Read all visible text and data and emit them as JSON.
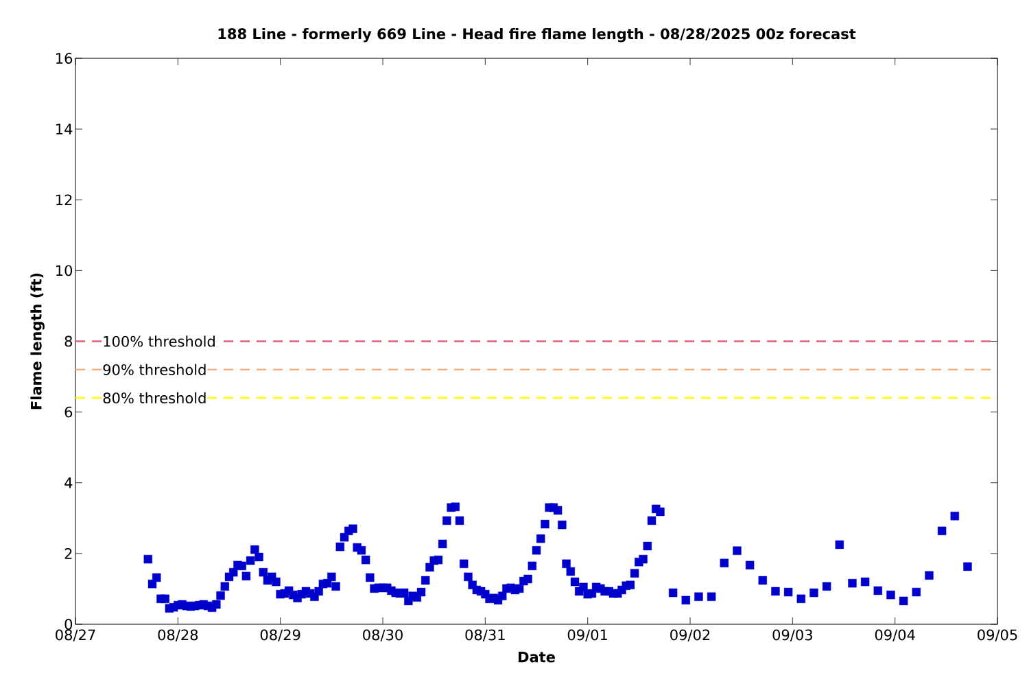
{
  "chart_data": {
    "type": "scatter",
    "title": "188 Line - formerly 669 Line - Head fire flame length - 08/28/2025 00z forecast",
    "xlabel": "Date",
    "ylabel": "Flame length (ft)",
    "x": [
      "2025-08-27T17:00",
      "2025-08-27T18:00",
      "2025-08-27T19:00",
      "2025-08-27T20:00",
      "2025-08-27T21:00",
      "2025-08-27T22:00",
      "2025-08-27T23:00",
      "2025-08-28T00:00",
      "2025-08-28T01:00",
      "2025-08-28T02:00",
      "2025-08-28T03:00",
      "2025-08-28T04:00",
      "2025-08-28T05:00",
      "2025-08-28T06:00",
      "2025-08-28T07:00",
      "2025-08-28T08:00",
      "2025-08-28T09:00",
      "2025-08-28T10:00",
      "2025-08-28T11:00",
      "2025-08-28T12:00",
      "2025-08-28T13:00",
      "2025-08-28T14:00",
      "2025-08-28T15:00",
      "2025-08-28T16:00",
      "2025-08-28T17:00",
      "2025-08-28T18:00",
      "2025-08-28T19:00",
      "2025-08-28T20:00",
      "2025-08-28T21:00",
      "2025-08-28T22:00",
      "2025-08-28T23:00",
      "2025-08-29T00:00",
      "2025-08-29T01:00",
      "2025-08-29T02:00",
      "2025-08-29T03:00",
      "2025-08-29T04:00",
      "2025-08-29T05:00",
      "2025-08-29T06:00",
      "2025-08-29T07:00",
      "2025-08-29T08:00",
      "2025-08-29T09:00",
      "2025-08-29T10:00",
      "2025-08-29T11:00",
      "2025-08-29T12:00",
      "2025-08-29T13:00",
      "2025-08-29T14:00",
      "2025-08-29T15:00",
      "2025-08-29T16:00",
      "2025-08-29T17:00",
      "2025-08-29T18:00",
      "2025-08-29T19:00",
      "2025-08-29T20:00",
      "2025-08-29T21:00",
      "2025-08-29T22:00",
      "2025-08-29T23:00",
      "2025-08-30T00:00",
      "2025-08-30T01:00",
      "2025-08-30T02:00",
      "2025-08-30T03:00",
      "2025-08-30T04:00",
      "2025-08-30T05:00",
      "2025-08-30T06:00",
      "2025-08-30T07:00",
      "2025-08-30T08:00",
      "2025-08-30T09:00",
      "2025-08-30T10:00",
      "2025-08-30T11:00",
      "2025-08-30T12:00",
      "2025-08-30T13:00",
      "2025-08-30T14:00",
      "2025-08-30T15:00",
      "2025-08-30T16:00",
      "2025-08-30T17:00",
      "2025-08-30T18:00",
      "2025-08-30T19:00",
      "2025-08-30T20:00",
      "2025-08-30T21:00",
      "2025-08-30T22:00",
      "2025-08-30T23:00",
      "2025-08-31T00:00",
      "2025-08-31T01:00",
      "2025-08-31T02:00",
      "2025-08-31T03:00",
      "2025-08-31T04:00",
      "2025-08-31T05:00",
      "2025-08-31T06:00",
      "2025-08-31T07:00",
      "2025-08-31T08:00",
      "2025-08-31T09:00",
      "2025-08-31T10:00",
      "2025-08-31T11:00",
      "2025-08-31T12:00",
      "2025-08-31T13:00",
      "2025-08-31T14:00",
      "2025-08-31T15:00",
      "2025-08-31T16:00",
      "2025-08-31T17:00",
      "2025-08-31T18:00",
      "2025-08-31T19:00",
      "2025-08-31T20:00",
      "2025-08-31T21:00",
      "2025-08-31T22:00",
      "2025-08-31T23:00",
      "2025-09-01T00:00",
      "2025-09-01T01:00",
      "2025-09-01T02:00",
      "2025-09-01T03:00",
      "2025-09-01T04:00",
      "2025-09-01T05:00",
      "2025-09-01T06:00",
      "2025-09-01T07:00",
      "2025-09-01T08:00",
      "2025-09-01T09:00",
      "2025-09-01T10:00",
      "2025-09-01T11:00",
      "2025-09-01T12:00",
      "2025-09-01T13:00",
      "2025-09-01T14:00",
      "2025-09-01T15:00",
      "2025-09-01T16:00",
      "2025-09-01T17:00",
      "2025-09-01T20:00",
      "2025-09-01T23:00",
      "2025-09-02T02:00",
      "2025-09-02T05:00",
      "2025-09-02T08:00",
      "2025-09-02T11:00",
      "2025-09-02T14:00",
      "2025-09-02T17:00",
      "2025-09-02T20:00",
      "2025-09-02T23:00",
      "2025-09-03T02:00",
      "2025-09-03T05:00",
      "2025-09-03T08:00",
      "2025-09-03T11:00",
      "2025-09-03T14:00",
      "2025-09-03T17:00",
      "2025-09-03T20:00",
      "2025-09-03T23:00",
      "2025-09-04T02:00",
      "2025-09-04T05:00",
      "2025-09-04T08:00",
      "2025-09-04T11:00",
      "2025-09-04T14:00",
      "2025-09-04T17:00"
    ],
    "series": [
      {
        "color": "#0000cc",
        "values": [
          1.84,
          1.14,
          1.32,
          0.72,
          0.72,
          0.45,
          0.48,
          0.54,
          0.56,
          0.52,
          0.5,
          0.52,
          0.54,
          0.56,
          0.52,
          0.47,
          0.56,
          0.81,
          1.07,
          1.34,
          1.47,
          1.67,
          1.65,
          1.36,
          1.8,
          2.11,
          1.9,
          1.47,
          1.24,
          1.34,
          1.2,
          0.85,
          0.87,
          0.95,
          0.83,
          0.74,
          0.85,
          0.93,
          0.87,
          0.78,
          0.93,
          1.14,
          1.16,
          1.34,
          1.07,
          2.19,
          2.46,
          2.64,
          2.7,
          2.17,
          2.09,
          1.82,
          1.32,
          1.01,
          1.03,
          1.03,
          1.03,
          0.95,
          0.89,
          0.87,
          0.89,
          0.66,
          0.8,
          0.76,
          0.91,
          1.24,
          1.61,
          1.8,
          1.82,
          2.27,
          2.93,
          3.3,
          3.32,
          2.93,
          1.71,
          1.34,
          1.11,
          0.97,
          0.93,
          0.85,
          0.72,
          0.74,
          0.68,
          0.8,
          1.01,
          1.03,
          0.97,
          1.01,
          1.22,
          1.28,
          1.65,
          2.09,
          2.42,
          2.83,
          3.3,
          3.3,
          3.22,
          2.81,
          1.71,
          1.49,
          1.2,
          0.93,
          1.05,
          0.85,
          0.87,
          1.05,
          1.01,
          0.93,
          0.93,
          0.87,
          0.87,
          0.97,
          1.09,
          1.11,
          1.44,
          1.76,
          1.84,
          2.21,
          2.93,
          3.26,
          3.18,
          0.89,
          0.68,
          0.78,
          0.78,
          1.73,
          2.08,
          1.67,
          1.24,
          0.93,
          0.91,
          0.72,
          0.89,
          1.07,
          2.25,
          1.16,
          1.2,
          0.95,
          0.83,
          0.66,
          0.91,
          1.38,
          2.64,
          3.06,
          1.63
        ]
      }
    ],
    "marker": "square",
    "xlim": [
      "2025-08-27",
      "2025-09-05"
    ],
    "xticks": [
      {
        "value": "2025-08-27",
        "label": "08/27"
      },
      {
        "value": "2025-08-28",
        "label": "08/28"
      },
      {
        "value": "2025-08-29",
        "label": "08/29"
      },
      {
        "value": "2025-08-30",
        "label": "08/30"
      },
      {
        "value": "2025-08-31",
        "label": "08/31"
      },
      {
        "value": "2025-09-01",
        "label": "09/01"
      },
      {
        "value": "2025-09-02",
        "label": "09/02"
      },
      {
        "value": "2025-09-03",
        "label": "09/03"
      },
      {
        "value": "2025-09-04",
        "label": "09/04"
      },
      {
        "value": "2025-09-05",
        "label": "09/05"
      }
    ],
    "ylim": [
      0,
      16
    ],
    "yticks": [
      0,
      2,
      4,
      6,
      8,
      10,
      12,
      14,
      16
    ],
    "ref_lines": [
      {
        "axis": "y",
        "value": 8,
        "label": "100% threshold",
        "color": "#e0607e",
        "line_style": "dashed"
      },
      {
        "axis": "y",
        "value": 7.2,
        "label": "90% threshold",
        "color": "#f4b183",
        "line_style": "dashed"
      },
      {
        "axis": "y",
        "value": 6.4,
        "label": "80% threshold",
        "color": "#ffff00",
        "line_style": "dashed"
      }
    ]
  }
}
